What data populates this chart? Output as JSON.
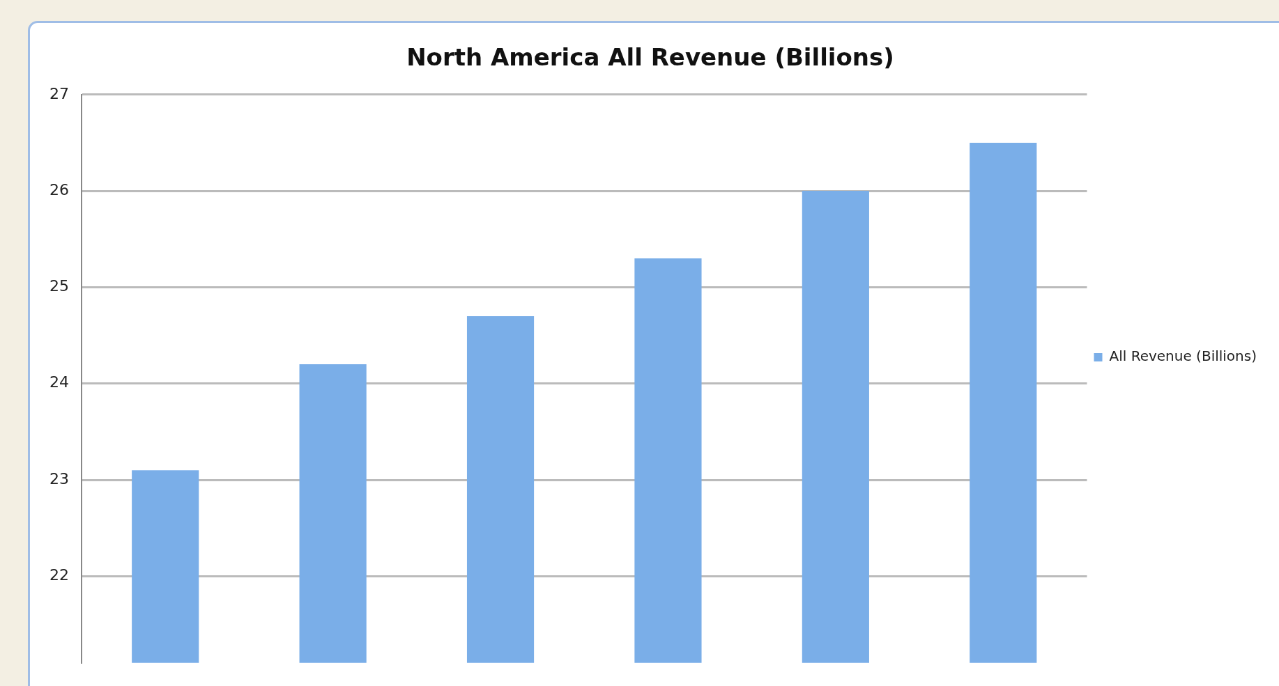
{
  "chart_data": {
    "type": "bar",
    "title": "North America All Revenue (Billions)",
    "categories": [
      null,
      null,
      null,
      null,
      null,
      null
    ],
    "series": [
      {
        "name": "All Revenue (Billions)",
        "color": "#7aaee8",
        "values": [
          23.1,
          24.2,
          24.7,
          25.3,
          26.0,
          26.5
        ]
      }
    ],
    "ylim": [
      21.1,
      27
    ],
    "yticks": [
      22,
      23,
      24,
      25,
      26,
      27
    ],
    "grid": "y",
    "legend": "right"
  }
}
